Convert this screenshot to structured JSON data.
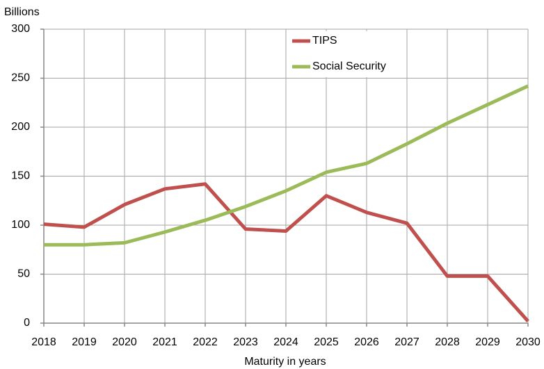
{
  "chart_data": {
    "type": "line",
    "y_label": "Billions",
    "x_label": "Maturity in years",
    "x": [
      2018,
      2019,
      2020,
      2021,
      2022,
      2023,
      2024,
      2025,
      2026,
      2027,
      2028,
      2029,
      2030
    ],
    "series": [
      {
        "name": "TIPS",
        "color": "#c0504d",
        "values": [
          101,
          98,
          121,
          137,
          142,
          96,
          94,
          130,
          113,
          102,
          48,
          48,
          2
        ]
      },
      {
        "name": "Social Security",
        "color": "#9bbb59",
        "values": [
          80,
          80,
          82,
          93,
          105,
          119,
          135,
          154,
          163,
          183,
          204,
          223,
          242
        ]
      }
    ],
    "xlim": [
      2018,
      2030
    ],
    "xticks": [
      2018,
      2019,
      2020,
      2021,
      2022,
      2023,
      2024,
      2025,
      2026,
      2027,
      2028,
      2029,
      2030
    ],
    "ylim": [
      0,
      300
    ],
    "yticks": [
      0,
      50,
      100,
      150,
      200,
      250,
      300
    ],
    "grid": true,
    "legend": "top"
  }
}
